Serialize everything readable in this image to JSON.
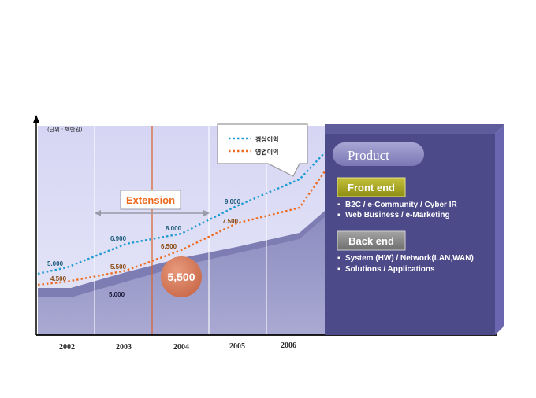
{
  "chart_data": {
    "type": "line",
    "unit_label": "(단위 : 백만원)",
    "categories": [
      "2002",
      "2003",
      "2004",
      "2005",
      "2006"
    ],
    "series": [
      {
        "name": "경상이익",
        "color": "#1e9bd0",
        "values": [
          5000,
          6900,
          8000,
          9000,
          null
        ],
        "labels": [
          "5.000",
          "6.900",
          "8.000",
          "9.000",
          ""
        ]
      },
      {
        "name": "영업이익",
        "color": "#ee6a1e",
        "values": [
          4500,
          5500,
          6500,
          7500,
          null
        ],
        "labels": [
          "4.500",
          "5.500",
          "6.500",
          "7.500",
          ""
        ]
      }
    ],
    "area_label": "5.000",
    "annotation_label": "Extension",
    "bubble_value": "5,500",
    "grid": true
  },
  "legend": {
    "items": [
      {
        "label": "경상이익",
        "color": "#1e9bd0"
      },
      {
        "label": "영업이익",
        "color": "#ee6a1e"
      }
    ]
  },
  "panel": {
    "title": "Product",
    "front": {
      "label": "Front end",
      "items": [
        "B2C / e-Community / Cyber IR",
        "Web Business / e-Marketing"
      ]
    },
    "back": {
      "label": "Back end",
      "items": [
        "System (HW) / Network(LAN,WAN)",
        "Solutions / Applications"
      ]
    }
  },
  "colors": {
    "accent_olive": "#a8a622",
    "panel_purple": "#4d4a8a",
    "chart_bg": "#dcdcf4",
    "area": "#9797c4",
    "bubble": "#d97a5a"
  }
}
